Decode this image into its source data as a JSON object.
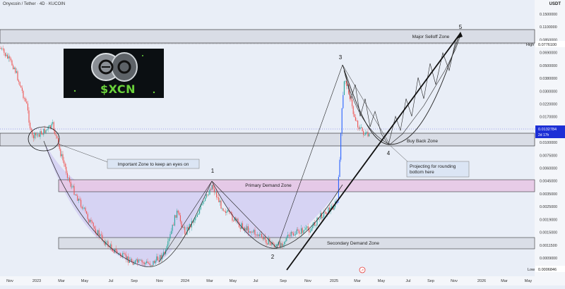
{
  "header": {
    "pair_title": "Onyxcoin / Tether · 4D · KUCOIN",
    "currency": "USDT"
  },
  "logo": {
    "ticker": "$XCN"
  },
  "chart_data": {
    "type": "candlestick",
    "xlabels": [
      "Nov",
      "2023",
      "Mar",
      "May",
      "Jul",
      "Sep",
      "Nov",
      "2024",
      "Mar",
      "May",
      "Jul",
      "Sep",
      "Nov",
      "2025",
      "Mar",
      "May",
      "Jul",
      "Sep",
      "Nov",
      "2026",
      "Mar",
      "May"
    ],
    "price_ticks": [
      "0.1500000",
      "0.1100000",
      "0.0850000",
      "0.0690000",
      "0.0500000",
      "0.0380000",
      "0.0300000",
      "0.0220000",
      "0.0170000",
      "0.0130000",
      "0.0100000",
      "0.0075000",
      "0.0060000",
      "0.0045000",
      "0.0035000",
      "0.0025000",
      "0.0019000",
      "0.0015000",
      "0.0011500",
      "0.0009000"
    ],
    "last_price": {
      "value": "0.0132784",
      "countdown": "2d 17h"
    },
    "high": {
      "label": "High",
      "value": "0.0776100"
    },
    "low": {
      "label": "Low",
      "value": "0.0006846"
    },
    "zones": [
      {
        "name": "Major Selloff Zone",
        "color": "#d9dde6"
      },
      {
        "name": "Buy Back Zone",
        "color": "#d9dde6"
      },
      {
        "name": "Primary Demand Zone",
        "color": "#e7c9e6"
      },
      {
        "name": "Secondary Demand Zone",
        "color": "#d9dde6"
      }
    ],
    "wave_labels": [
      "1",
      "2",
      "3",
      "4",
      "5"
    ],
    "annotations": [
      "Important Zone to keep an eyes on",
      "Projecting for rounding bottom here"
    ],
    "colors": {
      "up": "#26a69a",
      "down": "#ef5350",
      "bull": "#2962ff",
      "zone_fill": "#d9dde6",
      "demand_fill": "#e7c9e6"
    }
  }
}
